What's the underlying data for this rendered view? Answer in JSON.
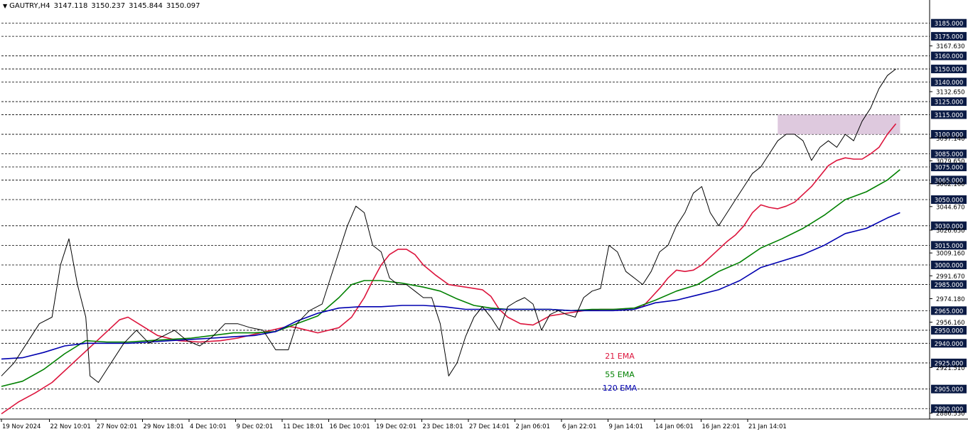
{
  "header": {
    "symbol": "GAUTRY,H4",
    "open": "3147.118",
    "high": "3150.237",
    "low": "3145.844",
    "close": "3150.097"
  },
  "chart_data": {
    "type": "line",
    "title": "",
    "ylim": [
      2882,
      3193
    ],
    "colors": {
      "ema21": "#dc143c",
      "ema55": "#008000",
      "ema120": "#0000b0",
      "price": "#000000",
      "zone": "#d8bfd8"
    },
    "x_ticks": [
      "19 Nov 2024",
      "22 Nov 10:01",
      "27 Nov 02:01",
      "29 Nov 18:01",
      "4 Dec 10:01",
      "9 Dec 02:01",
      "11 Dec 18:01",
      "16 Dec 10:01",
      "19 Dec 02:01",
      "23 Dec 18:01",
      "27 Dec 14:01",
      "2 Jan 06:01",
      "6 Jan 22:01",
      "9 Jan 14:01",
      "14 Jan 06:01",
      "16 Jan 22:01",
      "21 Jan 14:01"
    ],
    "y_ticks": [
      "3167.630",
      "3132.650",
      "3097.140",
      "3079.650",
      "3062.160",
      "3044.670",
      "3026.650",
      "3009.160",
      "2991.670",
      "2974.180",
      "2956.160",
      "2921.510",
      "2886.530"
    ],
    "level_lines": [
      "3185.000",
      "3175.000",
      "3160.000",
      "3150.000",
      "3140.000",
      "3125.000",
      "3115.000",
      "3100.000",
      "3085.000",
      "3075.000",
      "3065.000",
      "3050.000",
      "3030.000",
      "3015.000",
      "3000.000",
      "2985.000",
      "2965.000",
      "2950.000",
      "2940.000",
      "2925.000",
      "2905.000",
      "2890.000"
    ],
    "series": [
      {
        "name": "21 EMA",
        "key": "ema21",
        "points": [
          [
            0,
            2886
          ],
          [
            4,
            2895
          ],
          [
            8,
            2902
          ],
          [
            12,
            2910
          ],
          [
            16,
            2922
          ],
          [
            20,
            2934
          ],
          [
            24,
            2946
          ],
          [
            28,
            2958
          ],
          [
            30,
            2960
          ],
          [
            33,
            2954
          ],
          [
            37,
            2946
          ],
          [
            42,
            2942
          ],
          [
            47,
            2941
          ],
          [
            52,
            2942
          ],
          [
            56,
            2944
          ],
          [
            60,
            2947
          ],
          [
            64,
            2950
          ],
          [
            68,
            2953
          ],
          [
            70,
            2952
          ],
          [
            75,
            2948
          ],
          [
            80,
            2952
          ],
          [
            83,
            2960
          ],
          [
            86,
            2975
          ],
          [
            88,
            2988
          ],
          [
            90,
            3000
          ],
          [
            92,
            3008
          ],
          [
            94,
            3012
          ],
          [
            96,
            3012
          ],
          [
            98,
            3008
          ],
          [
            100,
            3000
          ],
          [
            103,
            2992
          ],
          [
            106,
            2985
          ],
          [
            110,
            2983
          ],
          [
            114,
            2981
          ],
          [
            116,
            2976
          ],
          [
            118,
            2966
          ],
          [
            120,
            2960
          ],
          [
            123,
            2955
          ],
          [
            126,
            2954
          ],
          [
            130,
            2961
          ],
          [
            134,
            2963
          ],
          [
            138,
            2965
          ],
          [
            142,
            2966
          ],
          [
            146,
            2966
          ],
          [
            150,
            2967
          ],
          [
            152,
            2968
          ],
          [
            154,
            2975
          ],
          [
            156,
            2982
          ],
          [
            158,
            2990
          ],
          [
            160,
            2996
          ],
          [
            162,
            2995
          ],
          [
            164,
            2996
          ],
          [
            166,
            3000
          ],
          [
            168,
            3006
          ],
          [
            170,
            3012
          ],
          [
            172,
            3018
          ],
          [
            174,
            3023
          ],
          [
            176,
            3030
          ],
          [
            178,
            3040
          ],
          [
            180,
            3046
          ],
          [
            182,
            3044
          ],
          [
            184,
            3043
          ],
          [
            186,
            3045
          ],
          [
            188,
            3048
          ],
          [
            190,
            3054
          ],
          [
            192,
            3060
          ],
          [
            194,
            3068
          ],
          [
            196,
            3076
          ],
          [
            198,
            3080
          ],
          [
            200,
            3082
          ],
          [
            202,
            3081
          ],
          [
            204,
            3081
          ],
          [
            206,
            3085
          ],
          [
            208,
            3090
          ],
          [
            210,
            3100
          ],
          [
            212,
            3108
          ]
        ]
      },
      {
        "name": "55 EMA",
        "key": "ema55",
        "points": [
          [
            0,
            2907
          ],
          [
            5,
            2911
          ],
          [
            10,
            2920
          ],
          [
            15,
            2932
          ],
          [
            20,
            2942
          ],
          [
            25,
            2941
          ],
          [
            30,
            2941
          ],
          [
            35,
            2942
          ],
          [
            40,
            2943
          ],
          [
            45,
            2944
          ],
          [
            50,
            2946
          ],
          [
            55,
            2948
          ],
          [
            60,
            2948
          ],
          [
            65,
            2949
          ],
          [
            70,
            2955
          ],
          [
            75,
            2961
          ],
          [
            80,
            2975
          ],
          [
            83,
            2985
          ],
          [
            86,
            2988
          ],
          [
            90,
            2988
          ],
          [
            95,
            2986
          ],
          [
            100,
            2983
          ],
          [
            104,
            2980
          ],
          [
            108,
            2974
          ],
          [
            112,
            2969
          ],
          [
            116,
            2967
          ],
          [
            120,
            2966
          ],
          [
            125,
            2966
          ],
          [
            130,
            2966
          ],
          [
            135,
            2965
          ],
          [
            140,
            2966
          ],
          [
            145,
            2966
          ],
          [
            150,
            2967
          ],
          [
            155,
            2973
          ],
          [
            160,
            2980
          ],
          [
            165,
            2985
          ],
          [
            170,
            2995
          ],
          [
            175,
            3002
          ],
          [
            180,
            3013
          ],
          [
            185,
            3020
          ],
          [
            190,
            3028
          ],
          [
            195,
            3038
          ],
          [
            200,
            3050
          ],
          [
            205,
            3056
          ],
          [
            210,
            3065
          ],
          [
            213,
            3073
          ]
        ]
      },
      {
        "name": "120 EMA",
        "key": "ema120",
        "points": [
          [
            0,
            2928
          ],
          [
            5,
            2929
          ],
          [
            10,
            2933
          ],
          [
            15,
            2938
          ],
          [
            20,
            2940
          ],
          [
            25,
            2940
          ],
          [
            30,
            2940
          ],
          [
            35,
            2941
          ],
          [
            40,
            2942
          ],
          [
            45,
            2943
          ],
          [
            50,
            2944
          ],
          [
            55,
            2945
          ],
          [
            60,
            2946
          ],
          [
            65,
            2949
          ],
          [
            70,
            2957
          ],
          [
            75,
            2963
          ],
          [
            80,
            2967
          ],
          [
            85,
            2968
          ],
          [
            90,
            2968
          ],
          [
            95,
            2969
          ],
          [
            100,
            2969
          ],
          [
            105,
            2968
          ],
          [
            110,
            2966
          ],
          [
            115,
            2966
          ],
          [
            120,
            2966
          ],
          [
            125,
            2966
          ],
          [
            130,
            2966
          ],
          [
            135,
            2965
          ],
          [
            140,
            2965
          ],
          [
            145,
            2965
          ],
          [
            150,
            2966
          ],
          [
            155,
            2971
          ],
          [
            160,
            2973
          ],
          [
            165,
            2977
          ],
          [
            170,
            2981
          ],
          [
            175,
            2988
          ],
          [
            180,
            2998
          ],
          [
            185,
            3003
          ],
          [
            190,
            3008
          ],
          [
            195,
            3015
          ],
          [
            200,
            3024
          ],
          [
            205,
            3028
          ],
          [
            210,
            3036
          ],
          [
            213,
            3040
          ]
        ]
      },
      {
        "name": "price",
        "key": "price",
        "points": [
          [
            0,
            2915
          ],
          [
            3,
            2925
          ],
          [
            6,
            2940
          ],
          [
            9,
            2955
          ],
          [
            12,
            2960
          ],
          [
            14,
            3000
          ],
          [
            16,
            3020
          ],
          [
            18,
            2985
          ],
          [
            20,
            2960
          ],
          [
            21,
            2915
          ],
          [
            23,
            2910
          ],
          [
            26,
            2925
          ],
          [
            29,
            2940
          ],
          [
            32,
            2950
          ],
          [
            35,
            2940
          ],
          [
            38,
            2945
          ],
          [
            41,
            2950
          ],
          [
            44,
            2942
          ],
          [
            47,
            2938
          ],
          [
            50,
            2945
          ],
          [
            53,
            2955
          ],
          [
            56,
            2955
          ],
          [
            59,
            2952
          ],
          [
            62,
            2950
          ],
          [
            65,
            2935
          ],
          [
            68,
            2935
          ],
          [
            70,
            2955
          ],
          [
            73,
            2965
          ],
          [
            76,
            2970
          ],
          [
            78,
            2990
          ],
          [
            80,
            3010
          ],
          [
            82,
            3030
          ],
          [
            84,
            3045
          ],
          [
            86,
            3040
          ],
          [
            88,
            3015
          ],
          [
            90,
            3010
          ],
          [
            92,
            2990
          ],
          [
            94,
            2985
          ],
          [
            96,
            2985
          ],
          [
            98,
            2980
          ],
          [
            100,
            2975
          ],
          [
            102,
            2975
          ],
          [
            104,
            2955
          ],
          [
            106,
            2915
          ],
          [
            108,
            2925
          ],
          [
            110,
            2945
          ],
          [
            112,
            2960
          ],
          [
            114,
            2968
          ],
          [
            116,
            2960
          ],
          [
            118,
            2950
          ],
          [
            120,
            2968
          ],
          [
            122,
            2972
          ],
          [
            124,
            2975
          ],
          [
            126,
            2970
          ],
          [
            128,
            2950
          ],
          [
            130,
            2962
          ],
          [
            132,
            2965
          ],
          [
            134,
            2962
          ],
          [
            136,
            2960
          ],
          [
            138,
            2975
          ],
          [
            140,
            2980
          ],
          [
            142,
            2982
          ],
          [
            144,
            3015
          ],
          [
            146,
            3010
          ],
          [
            148,
            2995
          ],
          [
            150,
            2990
          ],
          [
            152,
            2985
          ],
          [
            154,
            2995
          ],
          [
            156,
            3010
          ],
          [
            158,
            3015
          ],
          [
            160,
            3030
          ],
          [
            162,
            3040
          ],
          [
            164,
            3055
          ],
          [
            166,
            3060
          ],
          [
            168,
            3040
          ],
          [
            170,
            3030
          ],
          [
            172,
            3040
          ],
          [
            174,
            3050
          ],
          [
            176,
            3060
          ],
          [
            178,
            3070
          ],
          [
            180,
            3075
          ],
          [
            182,
            3085
          ],
          [
            184,
            3095
          ],
          [
            186,
            3100
          ],
          [
            188,
            3100
          ],
          [
            190,
            3095
          ],
          [
            192,
            3080
          ],
          [
            194,
            3090
          ],
          [
            196,
            3095
          ],
          [
            198,
            3090
          ],
          [
            200,
            3100
          ],
          [
            202,
            3095
          ],
          [
            204,
            3110
          ],
          [
            206,
            3120
          ],
          [
            208,
            3135
          ],
          [
            210,
            3145
          ],
          [
            212,
            3150
          ]
        ]
      }
    ],
    "zone": {
      "x_start": 184,
      "x_end": 213,
      "y_low": 3100,
      "y_high": 3115
    },
    "legend": [
      {
        "label": "21 EMA",
        "key": "ema21"
      },
      {
        "label": "55 EMA",
        "key": "ema55"
      },
      {
        "label": "120 EMA",
        "key": "ema120"
      }
    ],
    "x_max": 220
  }
}
